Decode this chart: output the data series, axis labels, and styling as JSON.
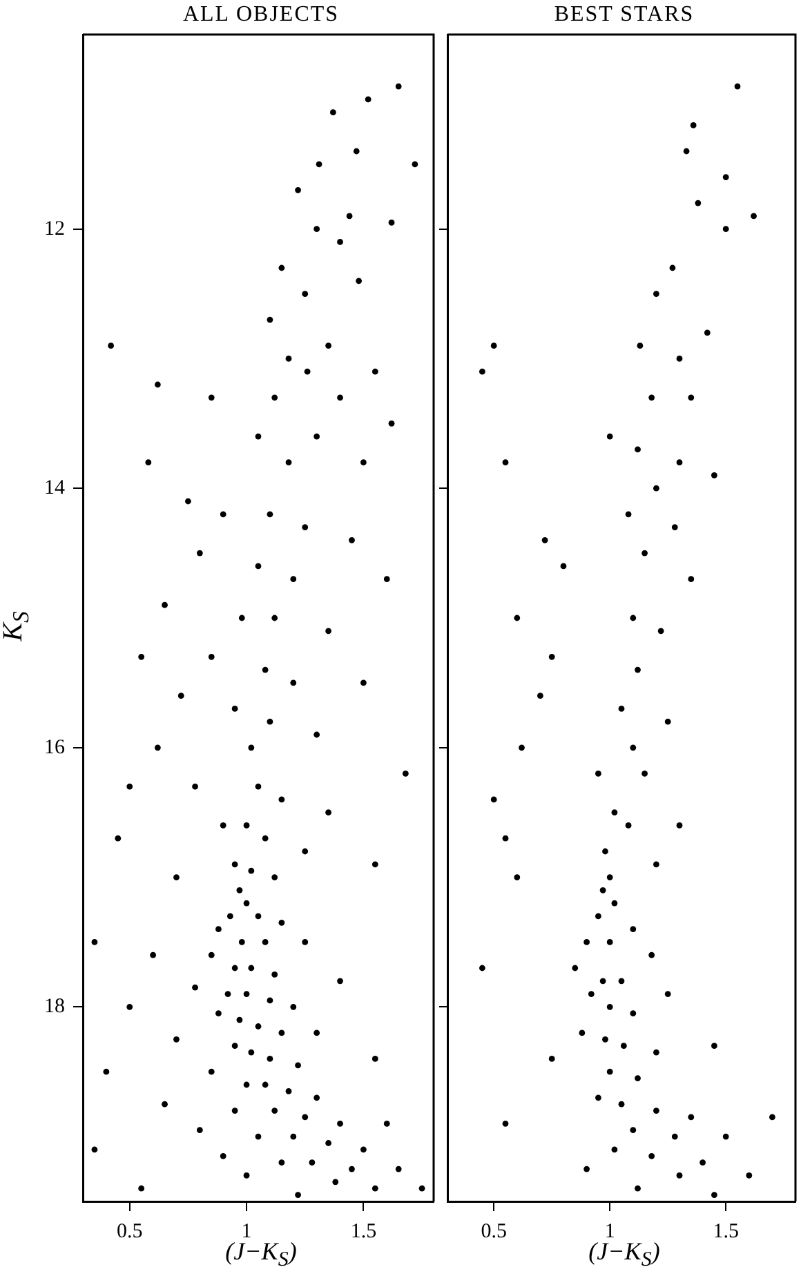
{
  "chart_data": [
    {
      "type": "scatter",
      "title": "ALL OBJECTS",
      "xlabel": "(J−K$_{S}$)",
      "ylabel": "K$_{S}$",
      "xlim": [
        0.3,
        1.8
      ],
      "xticks": [
        0.5,
        1,
        1.5
      ],
      "ylim": [
        19.5,
        10.5
      ],
      "yticks": [
        12,
        14,
        16,
        18
      ],
      "grid": false,
      "legend": false,
      "marker": "circle",
      "series": [
        {
          "color": "#000000",
          "x": [
            1.65,
            1.52,
            1.37,
            1.47,
            1.72,
            1.31,
            1.22,
            1.44,
            1.62,
            1.3,
            1.15,
            1.4,
            1.25,
            1.48,
            1.1,
            1.35,
            1.18,
            1.26,
            1.55,
            1.12,
            1.4,
            1.62,
            0.42,
            0.62,
            0.85,
            1.05,
            1.3,
            1.18,
            1.5,
            0.58,
            0.75,
            0.9,
            1.1,
            1.25,
            1.45,
            0.8,
            1.05,
            1.2,
            1.6,
            0.65,
            0.98,
            1.12,
            1.35,
            0.55,
            0.85,
            1.08,
            1.2,
            1.5,
            0.72,
            0.95,
            1.1,
            1.3,
            0.62,
            1.02,
            1.68,
            0.5,
            0.78,
            1.05,
            1.15,
            1.35,
            0.9,
            1.0,
            1.08,
            0.45,
            1.25,
            1.55,
            0.95,
            1.02,
            0.7,
            1.12,
            0.97,
            1.0,
            0.93,
            1.05,
            1.15,
            0.88,
            0.98,
            1.08,
            1.25,
            0.35,
            0.6,
            0.85,
            0.95,
            1.02,
            1.12,
            1.4,
            0.78,
            0.92,
            1.0,
            1.1,
            1.2,
            0.5,
            0.88,
            0.97,
            1.05,
            1.15,
            1.3,
            0.7,
            0.95,
            1.02,
            1.1,
            1.22,
            1.55,
            0.4,
            0.85,
            1.0,
            1.08,
            1.18,
            1.3,
            0.65,
            0.95,
            1.12,
            1.25,
            1.4,
            1.6,
            0.8,
            1.05,
            1.2,
            1.35,
            1.5,
            0.35,
            0.9,
            1.15,
            1.28,
            1.45,
            1.65,
            1.0,
            1.38,
            1.55,
            1.75,
            0.55,
            1.22
          ],
          "values": [
            10.9,
            11.0,
            11.1,
            11.4,
            11.5,
            11.5,
            11.7,
            11.9,
            11.95,
            12.0,
            12.3,
            12.1,
            12.5,
            12.4,
            12.7,
            12.9,
            13.0,
            13.1,
            13.1,
            13.3,
            13.3,
            13.5,
            12.9,
            13.2,
            13.3,
            13.6,
            13.6,
            13.8,
            13.8,
            13.8,
            14.1,
            14.2,
            14.2,
            14.3,
            14.4,
            14.5,
            14.6,
            14.7,
            14.7,
            14.9,
            15.0,
            15.0,
            15.1,
            15.3,
            15.3,
            15.4,
            15.5,
            15.5,
            15.6,
            15.7,
            15.8,
            15.9,
            16.0,
            16.0,
            16.2,
            16.3,
            16.3,
            16.3,
            16.4,
            16.5,
            16.6,
            16.6,
            16.7,
            16.7,
            16.8,
            16.9,
            16.9,
            16.95,
            17.0,
            17.0,
            17.1,
            17.2,
            17.3,
            17.3,
            17.35,
            17.4,
            17.5,
            17.5,
            17.5,
            17.5,
            17.6,
            17.6,
            17.7,
            17.7,
            17.75,
            17.8,
            17.85,
            17.9,
            17.9,
            17.95,
            18.0,
            18.0,
            18.05,
            18.1,
            18.15,
            18.2,
            18.2,
            18.25,
            18.3,
            18.35,
            18.4,
            18.45,
            18.4,
            18.5,
            18.5,
            18.6,
            18.6,
            18.65,
            18.7,
            18.75,
            18.8,
            18.8,
            18.85,
            18.9,
            18.9,
            18.95,
            19.0,
            19.0,
            19.05,
            19.1,
            19.1,
            19.15,
            19.2,
            19.2,
            19.25,
            19.25,
            19.3,
            19.35,
            19.4,
            19.4,
            19.4,
            19.45
          ]
        }
      ]
    },
    {
      "type": "scatter",
      "title": "BEST STARS",
      "xlabel": "(J−K$_{S}$)",
      "xlim": [
        0.3,
        1.8
      ],
      "xticks": [
        0.5,
        1,
        1.5
      ],
      "ylim": [
        19.5,
        10.5
      ],
      "yticks": [
        12,
        14,
        16,
        18
      ],
      "tick_labels": "x",
      "grid": false,
      "legend": false,
      "marker": "circle",
      "series": [
        {
          "color": "#000000",
          "x": [
            1.55,
            1.36,
            1.33,
            1.5,
            1.38,
            1.62,
            1.5,
            1.27,
            1.2,
            1.42,
            1.13,
            1.3,
            0.5,
            1.18,
            1.35,
            0.45,
            1.0,
            1.12,
            1.3,
            1.45,
            0.55,
            1.2,
            1.08,
            1.28,
            0.72,
            1.15,
            0.8,
            1.35,
            0.6,
            1.1,
            1.22,
            0.75,
            1.12,
            0.7,
            1.05,
            1.25,
            0.62,
            1.1,
            0.95,
            1.15,
            0.5,
            1.02,
            1.08,
            1.3,
            0.55,
            0.98,
            1.2,
            0.6,
            1.0,
            0.97,
            1.02,
            0.95,
            1.1,
            0.9,
            1.0,
            1.18,
            0.85,
            0.97,
            1.05,
            0.45,
            1.25,
            0.92,
            1.0,
            1.1,
            0.88,
            0.98,
            1.06,
            1.2,
            1.45,
            0.75,
            1.0,
            1.12,
            0.95,
            1.05,
            1.2,
            1.35,
            0.55,
            1.1,
            1.28,
            1.5,
            1.7,
            1.02,
            1.18,
            1.4,
            0.9,
            1.3,
            1.6,
            1.12,
            1.45
          ],
          "values": [
            10.9,
            11.2,
            11.4,
            11.6,
            11.8,
            11.9,
            12.0,
            12.3,
            12.5,
            12.8,
            12.9,
            13.0,
            12.9,
            13.3,
            13.3,
            13.1,
            13.6,
            13.7,
            13.8,
            13.9,
            13.8,
            14.0,
            14.2,
            14.3,
            14.4,
            14.5,
            14.6,
            14.7,
            15.0,
            15.0,
            15.1,
            15.3,
            15.4,
            15.6,
            15.7,
            15.8,
            16.0,
            16.0,
            16.2,
            16.2,
            16.4,
            16.5,
            16.6,
            16.6,
            16.7,
            16.8,
            16.9,
            17.0,
            17.0,
            17.1,
            17.2,
            17.3,
            17.4,
            17.5,
            17.5,
            17.6,
            17.7,
            17.8,
            17.8,
            17.7,
            17.9,
            17.9,
            18.0,
            18.05,
            18.2,
            18.25,
            18.3,
            18.35,
            18.3,
            18.4,
            18.5,
            18.55,
            18.7,
            18.75,
            18.8,
            18.85,
            18.9,
            18.95,
            19.0,
            19.0,
            18.85,
            19.1,
            19.15,
            19.2,
            19.25,
            19.3,
            19.3,
            19.4,
            19.45
          ]
        }
      ]
    }
  ]
}
